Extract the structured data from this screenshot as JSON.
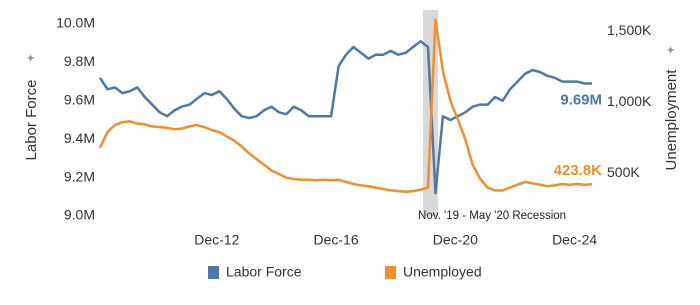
{
  "chart_data": {
    "type": "line",
    "x": [
      "2009-01",
      "2009-04",
      "2009-07",
      "2009-10",
      "2010-01",
      "2010-04",
      "2010-07",
      "2010-10",
      "2011-01",
      "2011-04",
      "2011-07",
      "2011-10",
      "2012-01",
      "2012-04",
      "2012-07",
      "2012-10",
      "2013-01",
      "2013-04",
      "2013-07",
      "2013-10",
      "2014-01",
      "2014-04",
      "2014-07",
      "2014-10",
      "2015-01",
      "2015-04",
      "2015-07",
      "2015-10",
      "2016-01",
      "2016-04",
      "2016-07",
      "2016-10",
      "2017-01",
      "2017-04",
      "2017-07",
      "2017-10",
      "2018-01",
      "2018-04",
      "2018-07",
      "2018-10",
      "2019-01",
      "2019-04",
      "2019-07",
      "2019-10",
      "2020-01",
      "2020-04",
      "2020-07",
      "2020-10",
      "2021-01",
      "2021-04",
      "2021-07",
      "2021-10",
      "2022-01",
      "2022-04",
      "2022-07",
      "2022-10",
      "2023-01",
      "2023-04",
      "2023-07",
      "2023-10",
      "2024-01",
      "2024-04",
      "2024-07",
      "2024-10",
      "2025-01",
      "2025-04",
      "2025-07"
    ],
    "xlim": [
      "2009-01",
      "2025-09"
    ],
    "xticks": [
      {
        "value": "2012-12",
        "label": "Dec-12"
      },
      {
        "value": "2016-12",
        "label": "Dec-16"
      },
      {
        "value": "2020-12",
        "label": "Dec-20"
      },
      {
        "value": "2024-12",
        "label": "Dec-24"
      }
    ],
    "ylabel": "Labor Force",
    "y2label": "Unemployment",
    "ylim": [
      9.0,
      10.0
    ],
    "yticks": [
      {
        "value": 9.0,
        "label": "9.0M"
      },
      {
        "value": 9.2,
        "label": "9.2M"
      },
      {
        "value": 9.4,
        "label": "9.4M"
      },
      {
        "value": 9.6,
        "label": "9.6M"
      },
      {
        "value": 9.8,
        "label": "9.8M"
      },
      {
        "value": 10.0,
        "label": "10.0M"
      }
    ],
    "y2lim": [
      200,
      1550
    ],
    "y2ticks": [
      {
        "value": 500,
        "label": "500K"
      },
      {
        "value": 1000,
        "label": "1,000K"
      },
      {
        "value": 1500,
        "label": "1,500K"
      }
    ],
    "grid": false,
    "legend": "bottom",
    "recession": {
      "start": "2019-11",
      "end": "2020-05",
      "label": "Nov. '19 - May '20 Recession",
      "color": "#d9d9d9"
    },
    "series": [
      {
        "name": "Labor Force",
        "color": "#4e79a7",
        "axis": "y",
        "values": [
          9.72,
          9.66,
          9.67,
          9.64,
          9.65,
          9.67,
          9.62,
          9.58,
          9.54,
          9.52,
          9.55,
          9.57,
          9.58,
          9.61,
          9.64,
          9.63,
          9.65,
          9.61,
          9.56,
          9.52,
          9.51,
          9.52,
          9.55,
          9.57,
          9.54,
          9.53,
          9.57,
          9.55,
          9.52,
          9.52,
          9.52,
          9.52,
          9.78,
          9.84,
          9.88,
          9.85,
          9.82,
          9.84,
          9.84,
          9.86,
          9.84,
          9.85,
          9.88,
          9.91,
          9.88,
          9.12,
          9.52,
          9.5,
          9.52,
          9.54,
          9.57,
          9.58,
          9.58,
          9.62,
          9.6,
          9.66,
          9.7,
          9.74,
          9.76,
          9.75,
          9.73,
          9.72,
          9.7,
          9.7,
          9.7,
          9.69,
          9.69
        ],
        "value_labels": [
          null,
          null,
          null,
          null,
          null,
          null,
          null,
          null,
          null,
          null,
          null,
          null,
          null,
          null,
          null,
          null,
          null,
          null,
          null,
          null,
          null,
          null,
          null,
          null,
          null,
          null,
          null,
          null,
          null,
          null,
          null,
          null,
          null,
          null,
          null,
          null,
          null,
          null,
          null,
          null,
          null,
          null,
          null,
          null,
          null,
          null,
          null,
          null,
          null,
          null,
          null,
          null,
          null,
          null,
          null,
          null,
          null,
          null,
          null,
          null,
          null,
          null,
          null,
          null,
          null,
          null,
          "9.69M"
        ]
      },
      {
        "name": "Unemployed",
        "color": "#f28e2b",
        "axis": "y2",
        "values": [
          680,
          790,
          840,
          860,
          865,
          850,
          845,
          830,
          825,
          820,
          810,
          815,
          830,
          840,
          825,
          805,
          790,
          760,
          730,
          690,
          640,
          600,
          560,
          520,
          495,
          470,
          460,
          455,
          455,
          450,
          455,
          450,
          455,
          440,
          425,
          415,
          410,
          400,
          390,
          380,
          375,
          370,
          375,
          385,
          400,
          1580,
          1220,
          1010,
          880,
          740,
          560,
          460,
          400,
          380,
          380,
          400,
          420,
          440,
          430,
          420,
          410,
          415,
          425,
          420,
          425,
          420,
          423.8
        ],
        "value_labels": [
          null,
          null,
          null,
          null,
          null,
          null,
          null,
          null,
          null,
          null,
          null,
          null,
          null,
          null,
          null,
          null,
          null,
          null,
          null,
          null,
          null,
          null,
          null,
          null,
          null,
          null,
          null,
          null,
          null,
          null,
          null,
          null,
          null,
          null,
          null,
          null,
          null,
          null,
          null,
          null,
          null,
          null,
          null,
          null,
          null,
          null,
          null,
          null,
          null,
          null,
          null,
          null,
          null,
          null,
          null,
          null,
          null,
          null,
          null,
          null,
          null,
          null,
          null,
          null,
          null,
          null,
          "423.8K"
        ]
      }
    ]
  }
}
